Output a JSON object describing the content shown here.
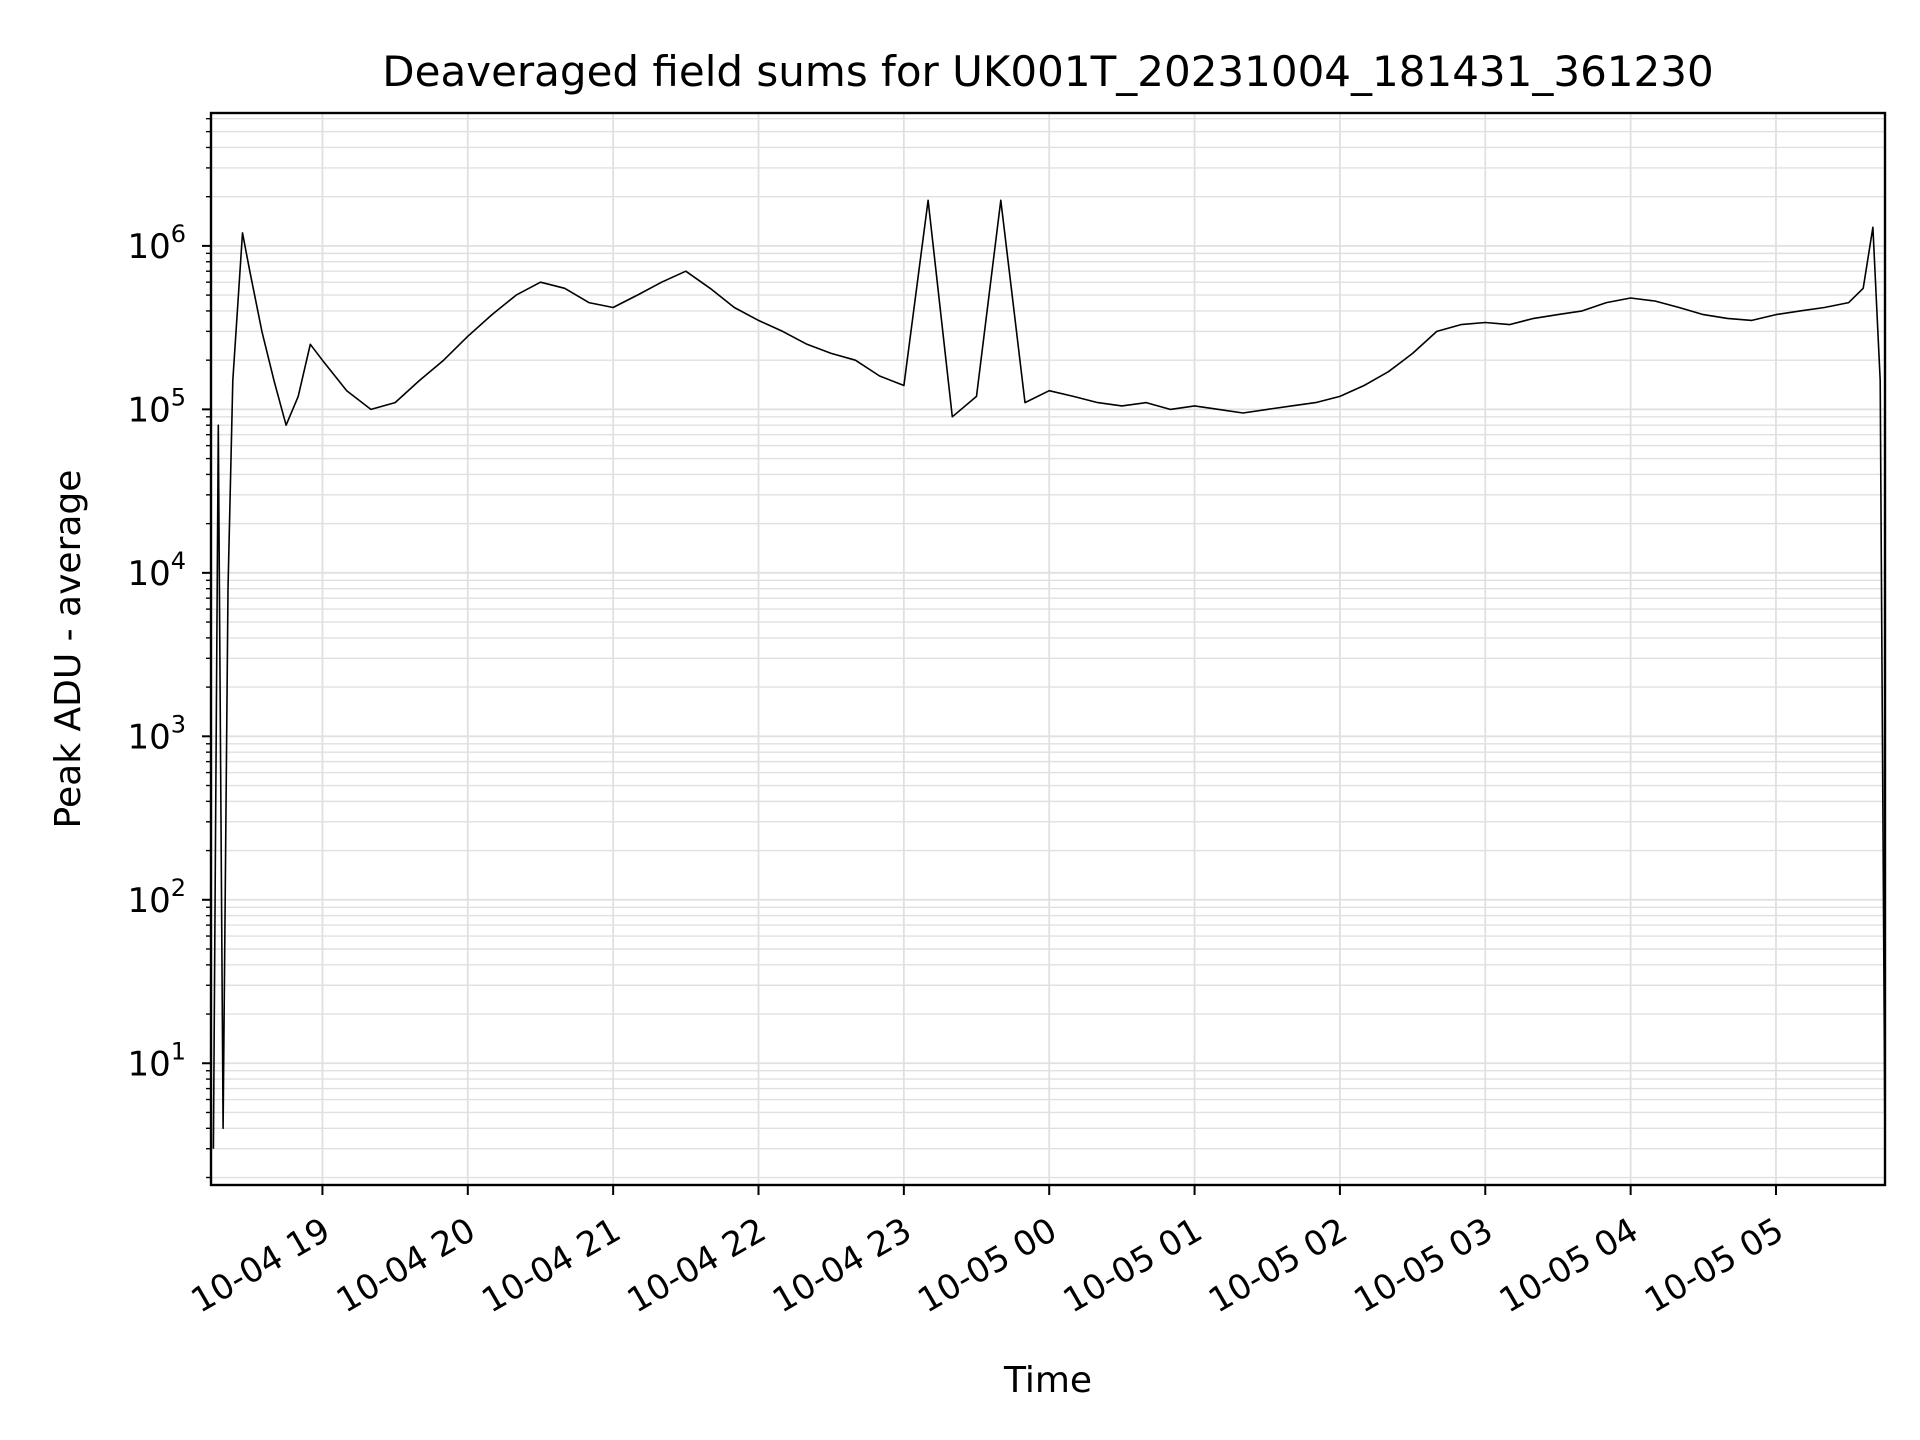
{
  "chart_data": {
    "type": "line",
    "title": "Deaveraged field sums for UK001T_20231004_181431_361230",
    "xlabel": "Time",
    "ylabel": "Peak ADU - average",
    "yscale": "log",
    "ylim": [
      1.8,
      6500000
    ],
    "xlim": [
      "2023-10-04 18:14",
      "2023-10-05 05:45"
    ],
    "grid": true,
    "grid_color": "#e0e0e0",
    "line_color": "#000000",
    "y_ticks": [
      {
        "value": 10,
        "base": "10",
        "exp": "1"
      },
      {
        "value": 100,
        "base": "10",
        "exp": "2"
      },
      {
        "value": 1000,
        "base": "10",
        "exp": "3"
      },
      {
        "value": 10000,
        "base": "10",
        "exp": "4"
      },
      {
        "value": 100000,
        "base": "10",
        "exp": "5"
      },
      {
        "value": 1000000,
        "base": "10",
        "exp": "6"
      }
    ],
    "x_ticks": [
      {
        "time": "2023-10-04 19:00",
        "label": "10-04 19"
      },
      {
        "time": "2023-10-04 20:00",
        "label": "10-04 20"
      },
      {
        "time": "2023-10-04 21:00",
        "label": "10-04 21"
      },
      {
        "time": "2023-10-04 22:00",
        "label": "10-04 22"
      },
      {
        "time": "2023-10-04 23:00",
        "label": "10-04 23"
      },
      {
        "time": "2023-10-05 00:00",
        "label": "10-05 00"
      },
      {
        "time": "2023-10-05 01:00",
        "label": "10-05 01"
      },
      {
        "time": "2023-10-05 02:00",
        "label": "10-05 02"
      },
      {
        "time": "2023-10-05 03:00",
        "label": "10-05 03"
      },
      {
        "time": "2023-10-05 04:00",
        "label": "10-05 04"
      },
      {
        "time": "2023-10-05 05:00",
        "label": "10-05 05"
      }
    ],
    "series": [
      {
        "x": [
          "2023-10-04 18:15",
          "2023-10-04 18:17",
          "2023-10-04 18:19",
          "2023-10-04 18:21",
          "2023-10-04 18:23",
          "2023-10-04 18:27",
          "2023-10-04 18:30",
          "2023-10-04 18:35",
          "2023-10-04 18:40",
          "2023-10-04 18:45",
          "2023-10-04 18:50",
          "2023-10-04 18:55",
          "2023-10-04 19:00",
          "2023-10-04 19:10",
          "2023-10-04 19:20",
          "2023-10-04 19:30",
          "2023-10-04 19:40",
          "2023-10-04 19:50",
          "2023-10-04 20:00",
          "2023-10-04 20:10",
          "2023-10-04 20:20",
          "2023-10-04 20:30",
          "2023-10-04 20:40",
          "2023-10-04 20:50",
          "2023-10-04 21:00",
          "2023-10-04 21:10",
          "2023-10-04 21:20",
          "2023-10-04 21:30",
          "2023-10-04 21:40",
          "2023-10-04 21:50",
          "2023-10-04 22:00",
          "2023-10-04 22:10",
          "2023-10-04 22:20",
          "2023-10-04 22:30",
          "2023-10-04 22:40",
          "2023-10-04 22:50",
          "2023-10-04 23:00",
          "2023-10-04 23:10",
          "2023-10-04 23:20",
          "2023-10-04 23:30",
          "2023-10-04 23:40",
          "2023-10-04 23:50",
          "2023-10-05 00:00",
          "2023-10-05 00:10",
          "2023-10-05 00:20",
          "2023-10-05 00:30",
          "2023-10-05 00:40",
          "2023-10-05 00:50",
          "2023-10-05 01:00",
          "2023-10-05 01:10",
          "2023-10-05 01:20",
          "2023-10-05 01:30",
          "2023-10-05 01:40",
          "2023-10-05 01:50",
          "2023-10-05 02:00",
          "2023-10-05 02:10",
          "2023-10-05 02:20",
          "2023-10-05 02:30",
          "2023-10-05 02:40",
          "2023-10-05 02:50",
          "2023-10-05 03:00",
          "2023-10-05 03:10",
          "2023-10-05 03:20",
          "2023-10-05 03:30",
          "2023-10-05 03:40",
          "2023-10-05 03:50",
          "2023-10-05 04:00",
          "2023-10-05 04:10",
          "2023-10-05 04:20",
          "2023-10-05 04:30",
          "2023-10-05 04:40",
          "2023-10-05 04:50",
          "2023-10-05 05:00",
          "2023-10-05 05:10",
          "2023-10-05 05:20",
          "2023-10-05 05:30",
          "2023-10-05 05:36",
          "2023-10-05 05:40",
          "2023-10-05 05:43",
          "2023-10-05 05:45"
        ],
        "y": [
          3,
          80000,
          4,
          8000,
          150000,
          1200000,
          700000,
          300000,
          150000,
          80000,
          120000,
          250000,
          200000,
          130000,
          100000,
          110000,
          150000,
          200000,
          280000,
          380000,
          500000,
          600000,
          550000,
          450000,
          420000,
          500000,
          600000,
          700000,
          550000,
          420000,
          350000,
          300000,
          250000,
          220000,
          200000,
          160000,
          140000,
          1900000,
          90000,
          120000,
          1900000,
          110000,
          130000,
          120000,
          110000,
          105000,
          110000,
          100000,
          105000,
          100000,
          95000,
          100000,
          105000,
          110000,
          120000,
          140000,
          170000,
          220000,
          300000,
          330000,
          340000,
          330000,
          360000,
          380000,
          400000,
          450000,
          480000,
          460000,
          420000,
          380000,
          360000,
          350000,
          380000,
          400000,
          420000,
          450000,
          550000,
          1300000,
          150000,
          3
        ]
      }
    ]
  }
}
